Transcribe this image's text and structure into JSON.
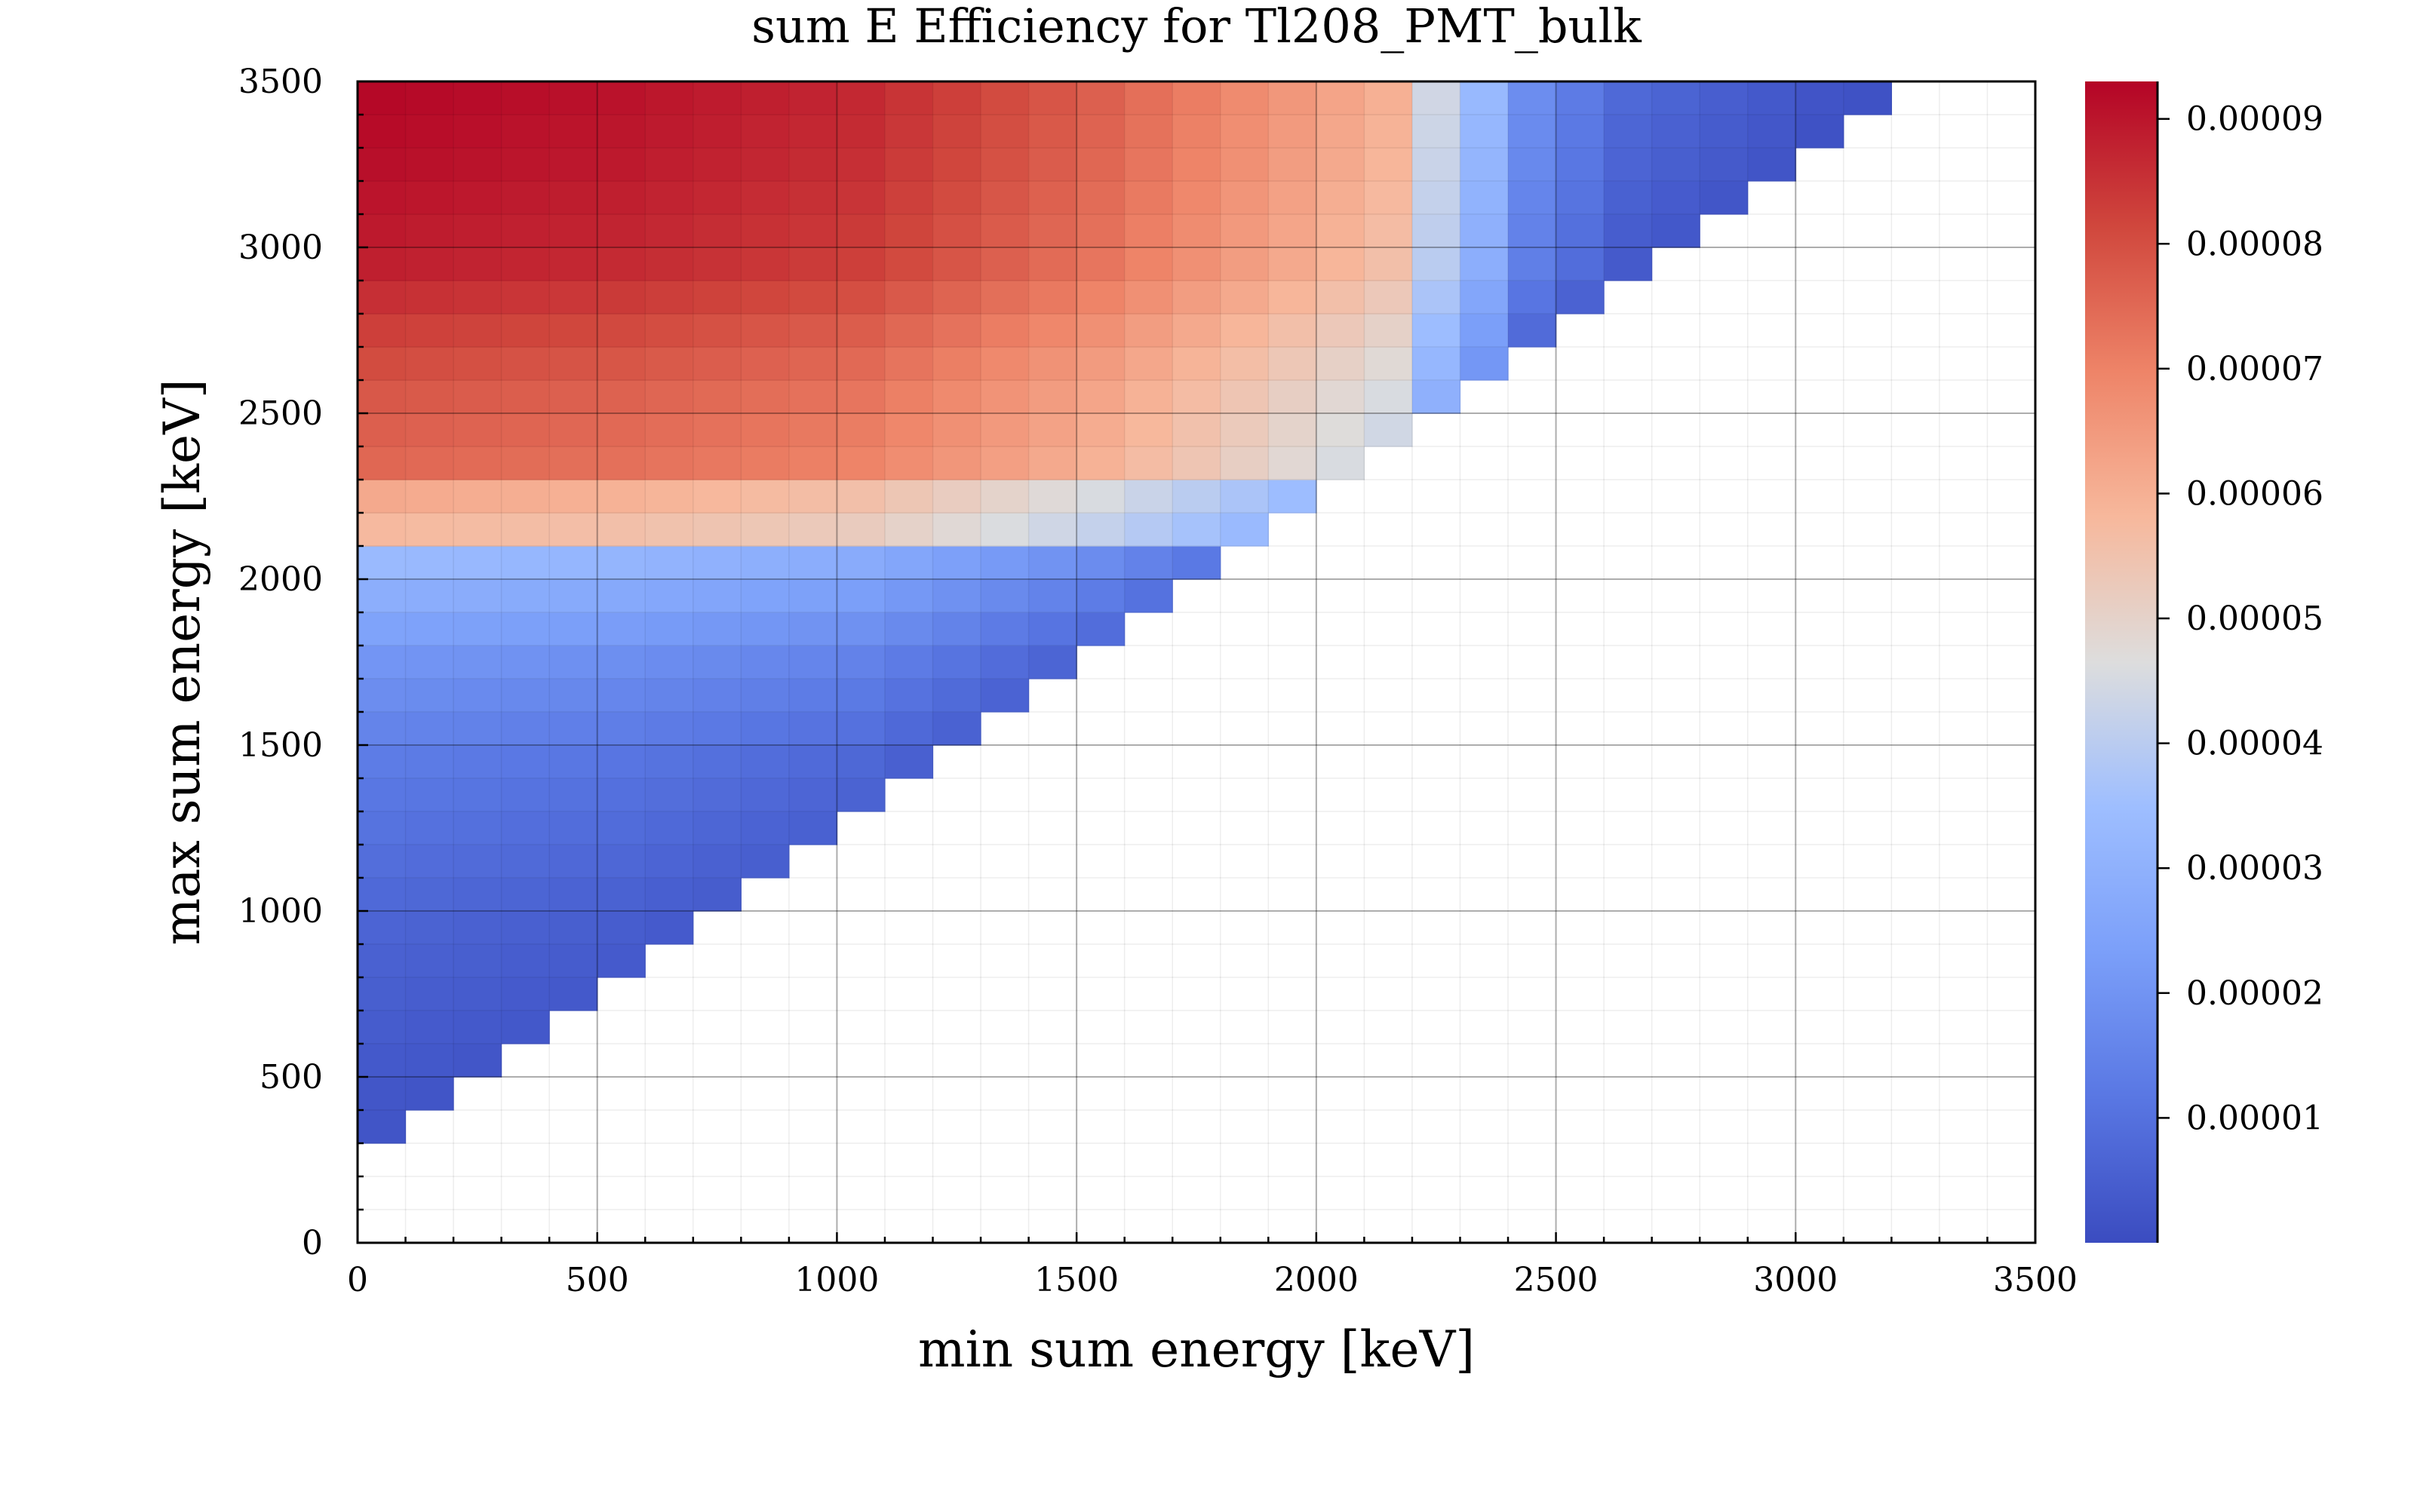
{
  "chart_data": {
    "type": "heatmap",
    "title": "sum E Efficiency for Tl208_PMT_bulk",
    "xlabel": "min sum energy [keV]",
    "ylabel": "max sum energy [keV]",
    "xlim": [
      0,
      3500
    ],
    "ylim": [
      0,
      3500
    ],
    "x_ticks": [
      0,
      500,
      1000,
      1500,
      2000,
      2500,
      3000,
      3500
    ],
    "y_ticks": [
      0,
      500,
      1000,
      1500,
      2000,
      2500,
      3000,
      3500
    ],
    "bin_width_x": 100,
    "bin_height_y": 100,
    "colormap": "coolwarm",
    "colorbar": {
      "range": [
        0,
        9.3e-05
      ],
      "ticks": [
        1e-05,
        2e-05,
        3e-05,
        4e-05,
        5e-05,
        6e-05,
        7e-05,
        8e-05,
        9e-05
      ],
      "tick_labels": [
        "0.00001",
        "0.00002",
        "0.00003",
        "0.00004",
        "0.00005",
        "0.00006",
        "0.00007",
        "0.00008",
        "0.00009"
      ],
      "position": "right"
    },
    "grid": true,
    "cells_filled_where": "max sum energy > min sum energy + 300 keV (approx. upper-left triangle); empty elsewhere",
    "sample_values": {
      "at_min_0_max_3500": 9.3e-05,
      "at_min_0_max_2400": 7.5e-05,
      "at_min_0_max_2200": 5.8e-05,
      "at_min_0_max_2000": 2.9e-05,
      "at_min_0_max_1500": 1.3e-05,
      "at_min_0_max_500": 2.5e-06,
      "at_min_1500_max_3500": 7.7e-05,
      "at_min_2000_max_3500": 6e-05,
      "at_min_2200_max_3500": 4.3e-05,
      "at_min_2400_max_3500": 1.8e-05,
      "at_min_3000_max_3500": 3e-06
    },
    "colors": {
      "low": "#3b4cc0",
      "mid": "#dddddd",
      "high": "#b40426",
      "frame": "#000000",
      "grid_major": "#999999",
      "grid_minor": "#e6e6e6"
    }
  }
}
